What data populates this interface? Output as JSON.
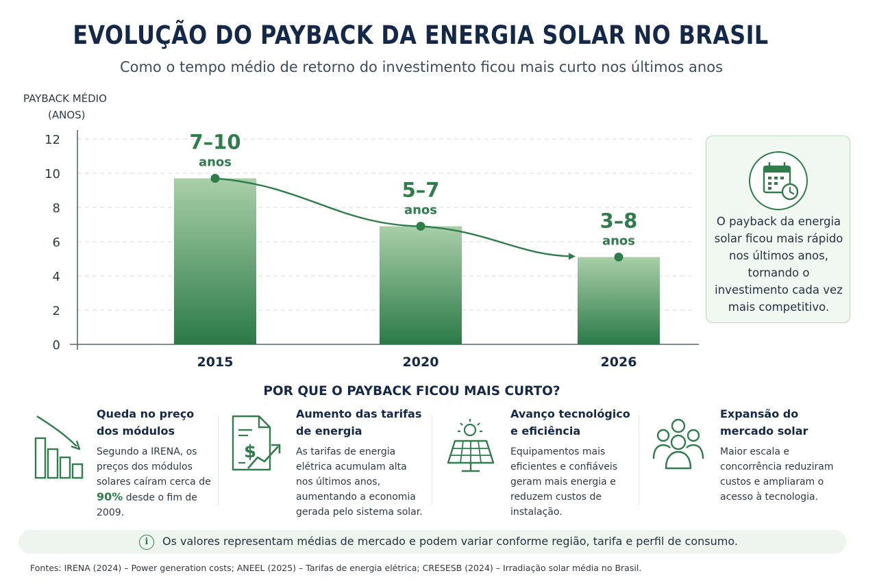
{
  "title": "EVOLUÇÃO DO PAYBACK DA ENERGIA SOLAR NO BRASIL",
  "subtitle": "Como o tempo médio de retorno do investimento ficou mais curto nos últimos anos",
  "chart_data": {
    "type": "bar",
    "ylabel": [
      "PAYBACK MÉDIO",
      "(ANOS)"
    ],
    "ylim": [
      0,
      12
    ],
    "yticks": [
      0,
      2,
      4,
      6,
      8,
      10,
      12
    ],
    "grid": true,
    "categories": [
      "2015",
      "2020",
      "2026"
    ],
    "values": [
      9.7,
      6.9,
      5.1
    ],
    "data_labels": [
      {
        "range": "7–10",
        "unit": "anos"
      },
      {
        "range": "5–7",
        "unit": "anos"
      },
      {
        "range": "3–8",
        "unit": "anos"
      }
    ],
    "trend_line": true
  },
  "note": "O payback da energia solar ficou mais rápido nos últimos anos, tornando o investimento cada vez mais competitivo.",
  "note_icon": "calendar-clock-icon",
  "why_title": "POR QUE O PAYBACK FICOU MAIS CURTO?",
  "factors": [
    {
      "icon": "falling-bars-icon",
      "title": [
        "Queda no preço",
        "dos módulos"
      ],
      "body_pre": "Segundo a IRENA, os preços dos módulos solares caíram cerca de ",
      "highlight": "90%",
      "body_post": " desde o fim de 2009."
    },
    {
      "icon": "invoice-dollar-icon",
      "title": [
        "Aumento das tarifas",
        "de energia"
      ],
      "body": "As tarifas de energia elétrica acumulam alta nos últimos anos, aumentando a economia gerada pelo sistema solar."
    },
    {
      "icon": "solar-panel-icon",
      "title": [
        "Avanço tecnológico",
        "e eficiência"
      ],
      "body": "Equipamentos mais eficientes e confiáveis geram mais energia e reduzem custos de instalação."
    },
    {
      "icon": "people-group-icon",
      "title": [
        "Expansão do",
        "mercado solar"
      ],
      "body": "Maior escala e concorrência reduziram custos e ampliaram o acesso à tecnologia."
    }
  ],
  "banner": "Os valores representam médias de mercado e podem variar conforme região, tarifa e perfil de consumo.",
  "sources": "Fontes: IRENA (2024) – Power generation costs; ANEEL (2025) – Tarifas de energia elétrica; CRESESB (2024) – Irradiação solar média no Brasil.",
  "colors": {
    "primary": "#2e7d4a",
    "title": "#14294a",
    "bar_top": "#a9cfa8",
    "bar_bottom": "#2b7a48"
  }
}
